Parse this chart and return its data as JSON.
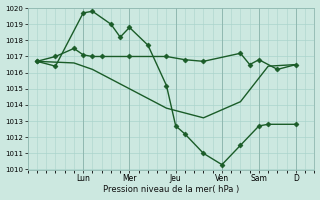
{
  "bg_color": "#cce8e0",
  "grid_color": "#aad4cc",
  "line_color": "#1a5c28",
  "marker_color": "#1a5c28",
  "xlabel": "Pression niveau de la mer( hPa )",
  "ylim": [
    1010,
    1020
  ],
  "yticks": [
    1010,
    1011,
    1012,
    1013,
    1014,
    1015,
    1016,
    1017,
    1018,
    1019,
    1020
  ],
  "day_labels": [
    "Lun",
    "Mer",
    "Jeu",
    "Ven",
    "Sam",
    "D"
  ],
  "day_positions": [
    3.0,
    5.5,
    8.0,
    10.5,
    12.5,
    14.5
  ],
  "xlim": [
    0,
    15.5
  ],
  "series": [
    {
      "x": [
        0.5,
        1.5,
        3.0,
        3.5,
        4.5,
        5.0,
        5.5,
        6.5,
        7.5,
        8.0,
        8.5,
        9.5,
        10.5,
        11.5,
        12.5,
        13.0,
        14.5
      ],
      "y": [
        1016.7,
        1016.4,
        1019.7,
        1019.8,
        1019.0,
        1018.2,
        1018.8,
        1017.7,
        1015.2,
        1012.7,
        1012.2,
        1011.0,
        1010.3,
        1011.5,
        1012.7,
        1012.8,
        1012.8
      ],
      "marker": "D",
      "markersize": 2.5,
      "linewidth": 1.0
    },
    {
      "x": [
        0.5,
        1.5,
        2.5,
        3.0,
        3.5,
        4.0,
        5.5,
        7.5,
        8.5,
        9.5,
        11.5,
        12.0,
        12.5,
        13.5,
        14.5
      ],
      "y": [
        1016.7,
        1017.0,
        1017.5,
        1017.1,
        1017.0,
        1017.0,
        1017.0,
        1017.0,
        1016.8,
        1016.7,
        1017.2,
        1016.5,
        1016.8,
        1016.2,
        1016.5
      ],
      "marker": "D",
      "markersize": 2.5,
      "linewidth": 1.0
    },
    {
      "x": [
        0.5,
        2.5,
        3.5,
        5.5,
        7.5,
        9.5,
        11.5,
        13.0,
        14.5
      ],
      "y": [
        1016.7,
        1016.6,
        1016.2,
        1015.0,
        1013.8,
        1013.2,
        1014.2,
        1016.4,
        1016.5
      ],
      "marker": null,
      "markersize": 0,
      "linewidth": 1.0
    }
  ]
}
